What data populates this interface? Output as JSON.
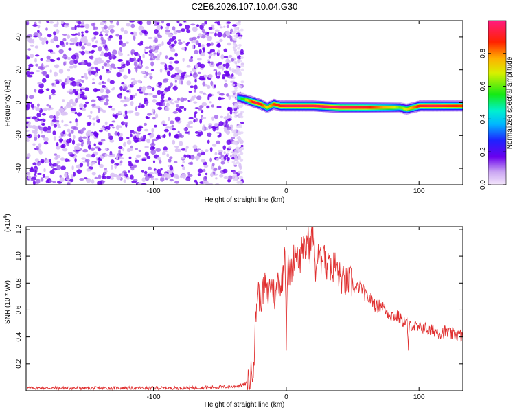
{
  "chart_data": [
    {
      "type": "heatmap",
      "title": "C2E6.2026.107.10.04.G30",
      "xlabel": "Height of straight line (km)",
      "ylabel": "Frequency (Hz)",
      "xlim": [
        -196,
        133
      ],
      "ylim": [
        -50,
        50
      ],
      "xticks": [
        -100,
        0,
        100
      ],
      "xtick_labels": [
        "-100",
        "0",
        "100"
      ],
      "yticks": [
        -40,
        -20,
        0,
        20,
        40
      ],
      "ytick_labels": [
        "-40",
        "-20",
        "0",
        "20",
        "40"
      ],
      "noise_region_x": [
        -196,
        -36
      ],
      "ridge": {
        "x": [
          -37,
          -32,
          -28,
          -24,
          -20,
          -15,
          -10,
          -5,
          0,
          10,
          20,
          40,
          60,
          80,
          85,
          90,
          100,
          110,
          120,
          133
        ],
        "y": [
          3,
          2,
          1,
          0,
          -1,
          -3,
          -1,
          -2,
          -2,
          -2,
          -2,
          -3,
          -3,
          -3,
          -3,
          -4,
          -2,
          -2,
          -2,
          -2
        ],
        "amplitude": [
          0.45,
          0.6,
          0.8,
          0.95,
          0.9,
          0.7,
          0.85,
          0.9,
          0.95,
          0.95,
          0.95,
          0.95,
          0.9,
          0.7,
          0.6,
          0.7,
          0.9,
          0.95,
          0.9,
          0.85
        ]
      },
      "colorbar": {
        "label": "Normalized spectral amplitude",
        "range": [
          0,
          1
        ],
        "ticks": [
          0.0,
          0.2,
          0.4,
          0.6,
          0.8
        ],
        "tick_labels": [
          "0.0",
          "0.2",
          "0.4",
          "0.6",
          "0.8"
        ]
      }
    },
    {
      "type": "line",
      "xlabel": "Height of straight line (km)",
      "ylabel": "SNR (10 * v/v)",
      "y_multiplier": "(x10",
      "y_multiplier_exp": "4",
      "y_multiplier_close": ")",
      "xlim": [
        -196,
        133
      ],
      "ylim": [
        0,
        1.22
      ],
      "xticks": [
        -100,
        0,
        100
      ],
      "xtick_labels": [
        "-100",
        "0",
        "100"
      ],
      "yticks": [
        0.2,
        0.4,
        0.6,
        0.8,
        1.0,
        1.2
      ],
      "ytick_labels": [
        "0.2",
        "0.4",
        "0.6",
        "0.8",
        "1.0",
        "1.2"
      ],
      "color": "#e03030",
      "series": [
        {
          "x": [
            -196,
            -170,
            -140,
            -110,
            -80,
            -60,
            -40,
            -30,
            -27,
            -25,
            -24,
            -23,
            -22,
            -21,
            -20,
            -18,
            -16,
            -14,
            -12,
            -10,
            -8,
            -6,
            -4,
            -2,
            -1,
            0,
            1,
            2,
            4,
            6,
            8,
            10,
            12,
            14,
            16,
            18,
            20,
            22,
            24,
            26,
            28,
            30,
            32,
            34,
            36,
            38,
            40,
            44,
            48,
            52,
            56,
            60,
            64,
            68,
            72,
            76,
            80,
            84,
            88,
            91,
            92,
            93,
            94,
            96,
            100,
            104,
            108,
            112,
            116,
            120,
            124,
            128,
            133
          ],
          "y": [
            0.02,
            0.02,
            0.02,
            0.02,
            0.02,
            0.025,
            0.03,
            0.05,
            0.1,
            0.2,
            0.3,
            0.55,
            0.7,
            0.75,
            0.68,
            0.72,
            0.78,
            0.7,
            0.8,
            0.75,
            0.68,
            0.85,
            0.78,
            0.9,
            1.15,
            0.4,
            0.95,
            0.85,
            0.9,
            1.0,
            1.05,
            0.95,
            1.1,
            1.0,
            1.15,
            1.05,
            1.2,
            0.9,
            1.0,
            0.95,
            1.1,
            0.9,
            1.05,
            0.85,
            0.95,
            0.9,
            0.85,
            0.8,
            0.82,
            0.75,
            0.78,
            0.7,
            0.68,
            0.62,
            0.64,
            0.58,
            0.56,
            0.55,
            0.52,
            0.5,
            0.32,
            0.48,
            0.5,
            0.48,
            0.46,
            0.47,
            0.44,
            0.45,
            0.43,
            0.44,
            0.42,
            0.42,
            0.4
          ]
        }
      ]
    }
  ]
}
